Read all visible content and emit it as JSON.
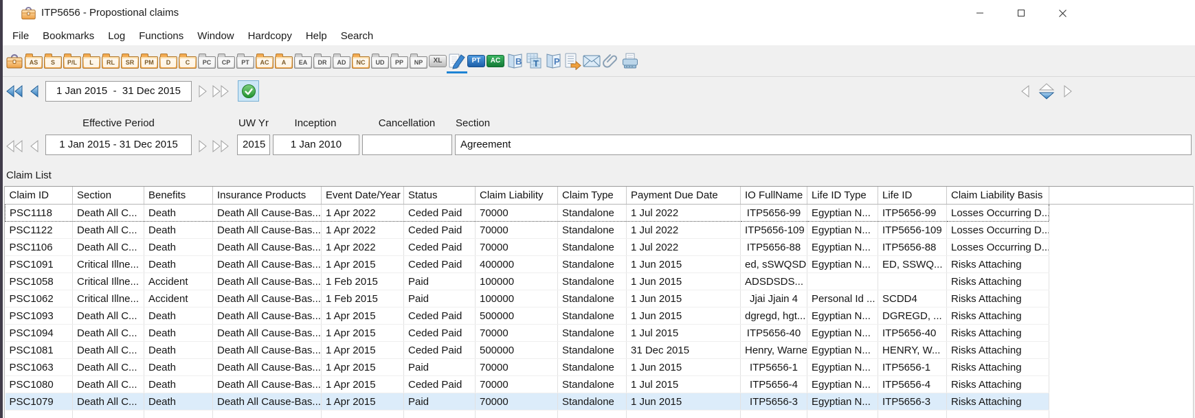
{
  "window": {
    "title": "ITP5656 - Propostional claims"
  },
  "menu": {
    "items": [
      "File",
      "Bookmarks",
      "Log",
      "Functions",
      "Window",
      "Hardcopy",
      "Help",
      "Search"
    ]
  },
  "toolbar": {
    "items": [
      {
        "name": "briefcase",
        "kind": "briefcase"
      },
      {
        "name": "folder-as",
        "label": "AS",
        "kind": "folder-orange"
      },
      {
        "name": "folder-s",
        "label": "S",
        "kind": "folder-orange"
      },
      {
        "name": "folder-pl",
        "label": "P/L",
        "kind": "folder-orange"
      },
      {
        "name": "folder-l",
        "label": "L",
        "kind": "folder-orange"
      },
      {
        "name": "folder-rl",
        "label": "RL",
        "kind": "folder-orange"
      },
      {
        "name": "folder-sr",
        "label": "SR",
        "kind": "folder-orange"
      },
      {
        "name": "folder-pm",
        "label": "PM",
        "kind": "folder-orange"
      },
      {
        "name": "folder-d",
        "label": "D",
        "kind": "folder-orange"
      },
      {
        "name": "folder-c",
        "label": "C",
        "kind": "folder-orange"
      },
      {
        "name": "folder-pc",
        "label": "PC",
        "kind": "folder-gray"
      },
      {
        "name": "folder-cp",
        "label": "CP",
        "kind": "folder-gray"
      },
      {
        "name": "folder-pt",
        "label": "PT",
        "kind": "folder-gray"
      },
      {
        "name": "folder-ac",
        "label": "AC",
        "kind": "folder-orange"
      },
      {
        "name": "folder-a",
        "label": "A",
        "kind": "folder-orange"
      },
      {
        "name": "folder-ea",
        "label": "EA",
        "kind": "folder-gray"
      },
      {
        "name": "folder-dr",
        "label": "DR",
        "kind": "folder-gray"
      },
      {
        "name": "folder-ad",
        "label": "AD",
        "kind": "folder-gray"
      },
      {
        "name": "folder-nc",
        "label": "NC",
        "kind": "folder-orange"
      },
      {
        "name": "folder-ud",
        "label": "UD",
        "kind": "folder-gray"
      },
      {
        "name": "folder-pp",
        "label": "PP",
        "kind": "folder-gray"
      },
      {
        "name": "folder-np",
        "label": "NP",
        "kind": "folder-gray"
      },
      {
        "name": "excel-button",
        "label": "XL",
        "kind": "button-gray"
      },
      {
        "name": "claims-editor",
        "kind": "pen-doc",
        "selected": true
      },
      {
        "name": "pt-button",
        "label": "PT",
        "kind": "button-blue"
      },
      {
        "name": "ac-button",
        "label": "AC",
        "kind": "button-green"
      },
      {
        "name": "book-b",
        "label": "B",
        "kind": "book"
      },
      {
        "name": "table-t",
        "label": "T",
        "kind": "table-doc"
      },
      {
        "name": "book-p",
        "label": "P",
        "kind": "book"
      },
      {
        "name": "list-export",
        "kind": "list-export"
      },
      {
        "name": "envelope",
        "kind": "envelope"
      },
      {
        "name": "paperclip",
        "kind": "paperclip"
      },
      {
        "name": "printer",
        "kind": "printer"
      }
    ]
  },
  "period_nav": {
    "value": "1 Jan 2015  -  31 Dec 2015"
  },
  "filters": {
    "effective_period": {
      "label": "Effective Period",
      "value": "1 Jan 2015 - 31 Dec 2015"
    },
    "uw_yr": {
      "label": "UW Yr",
      "value": "2015"
    },
    "inception": {
      "label": "Inception",
      "value": "1 Jan 2010"
    },
    "cancellation": {
      "label": "Cancellation",
      "value": ""
    },
    "section": {
      "label": "Section",
      "value": "Agreement"
    }
  },
  "claim_list": {
    "title": "Claim List",
    "columns": [
      "Claim ID",
      "Section",
      "Benefits",
      "Insurance Products",
      "Event Date/Year",
      "Status",
      "Claim Liability",
      "Claim Type",
      "Payment Due Date",
      "IO FullName",
      "Life ID Type",
      "Life ID",
      "Claim Liability Basis"
    ],
    "rows": [
      [
        "PSC1118",
        "Death All C...",
        "Death",
        "Death All Cause-Bas...",
        "1 Apr 2022",
        "Ceded Paid",
        "70000",
        "Standalone",
        "1 Jul 2022",
        "ITP5656-99",
        "Egyptian N...",
        "ITP5656-99",
        "Losses Occurring D..."
      ],
      [
        "PSC1122",
        "Death All C...",
        "Death",
        "Death All Cause-Bas...",
        "1 Apr 2022",
        "Ceded Paid",
        "70000",
        "Standalone",
        "1 Jul 2022",
        "ITP5656-109",
        "Egyptian N...",
        "ITP5656-109",
        "Losses Occurring D..."
      ],
      [
        "PSC1106",
        "Death All C...",
        "Death",
        "Death All Cause-Bas...",
        "1 Apr 2022",
        "Ceded Paid",
        "70000",
        "Standalone",
        "1 Jul 2022",
        "ITP5656-88",
        "Egyptian N...",
        "ITP5656-88",
        "Losses Occurring D..."
      ],
      [
        "PSC1091",
        "Critical Illne...",
        "Death",
        "Death All Cause-Bas...",
        "1 Apr 2015",
        "Ceded Paid",
        "400000",
        "Standalone",
        "1 Jun 2015",
        "ed, sSWQSD",
        "Egyptian N...",
        "ED, SSWQ...",
        "Risks Attaching"
      ],
      [
        "PSC1058",
        "Critical Illne...",
        "Accident",
        "Death All Cause-Bas...",
        "1 Feb 2015",
        "Paid",
        "100000",
        "Standalone",
        "1 Jun 2015",
        "ADSDSDS...",
        "",
        "",
        "Risks Attaching"
      ],
      [
        "PSC1062",
        "Critical Illne...",
        "Accident",
        "Death All Cause-Bas...",
        "1 Feb 2015",
        "Paid",
        "100000",
        "Standalone",
        "1 Jun 2015",
        "Jjai Jjain 4",
        "Personal Id ...",
        "SCDD4",
        "Risks Attaching"
      ],
      [
        "PSC1093",
        "Death All C...",
        "Death",
        "Death All Cause-Bas...",
        "1 Apr 2015",
        "Ceded Paid",
        "500000",
        "Standalone",
        "1 Jun 2015",
        "dgregd, hgt...",
        "Egyptian N...",
        "DGREGD, ...",
        "Risks Attaching"
      ],
      [
        "PSC1094",
        "Death All C...",
        "Death",
        "Death All Cause-Bas...",
        "1 Apr 2015",
        "Ceded Paid",
        "70000",
        "Standalone",
        "1 Jul 2015",
        "ITP5656-40",
        "Egyptian N...",
        "ITP5656-40",
        "Risks Attaching"
      ],
      [
        "PSC1081",
        "Death All C...",
        "Death",
        "Death All Cause-Bas...",
        "1 Apr 2015",
        "Ceded Paid",
        "500000",
        "Standalone",
        "31 Dec 2015",
        "Henry, Warne",
        "Egyptian N...",
        "HENRY, W...",
        "Risks Attaching"
      ],
      [
        "PSC1063",
        "Death All C...",
        "Death",
        "Death All Cause-Bas...",
        "1 Apr 2015",
        "Paid",
        "70000",
        "Standalone",
        "1 Jun 2015",
        "ITP5656-1",
        "Egyptian N...",
        "ITP5656-1",
        "Risks Attaching"
      ],
      [
        "PSC1080",
        "Death All C...",
        "Death",
        "Death All Cause-Bas...",
        "1 Apr 2015",
        "Ceded Paid",
        "70000",
        "Standalone",
        "1 Jul 2015",
        "ITP5656-4",
        "Egyptian N...",
        "ITP5656-4",
        "Risks Attaching"
      ],
      [
        "PSC1079",
        "Death All C...",
        "Death",
        "Death All Cause-Bas...",
        "1 Apr 2015",
        "Paid",
        "70000",
        "Standalone",
        "1 Jun 2015",
        "ITP5656-3",
        "Egyptian N...",
        "ITP5656-3",
        "Risks Attaching"
      ]
    ],
    "focused_claim_id": "PSC1118",
    "selected_claim_id": "PSC1079"
  }
}
